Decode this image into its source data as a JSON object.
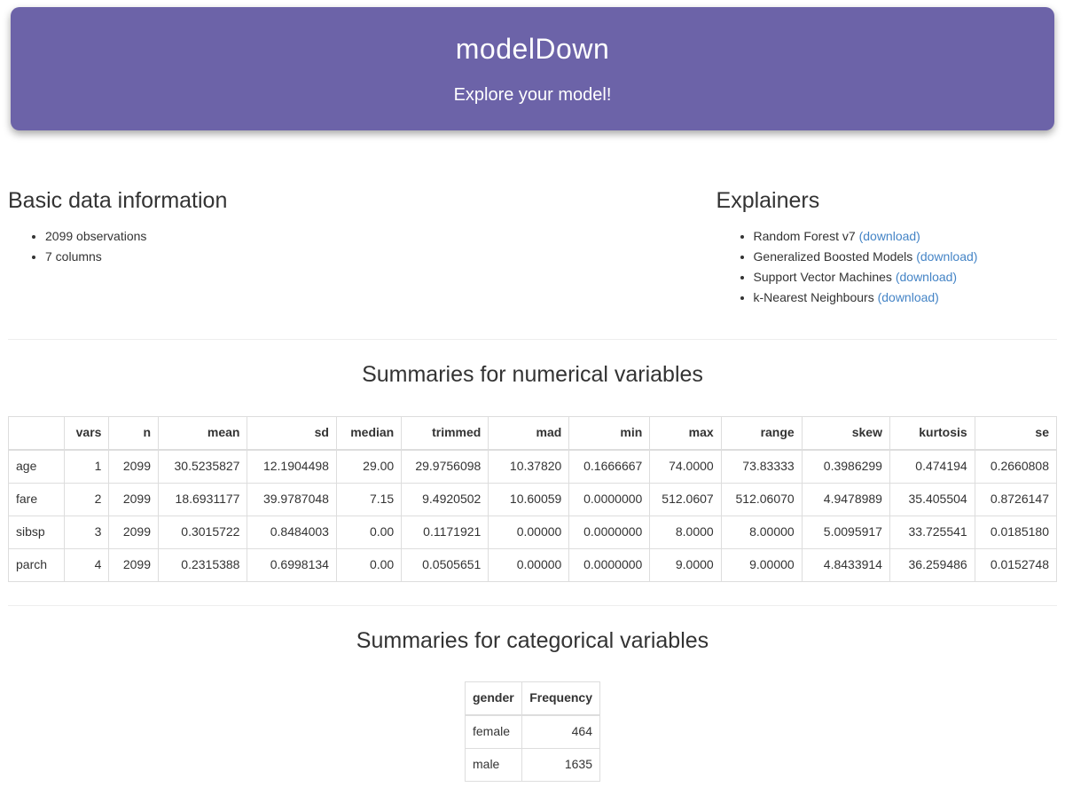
{
  "header": {
    "title": "modelDown",
    "subtitle": "Explore your model!"
  },
  "basic_info": {
    "heading": "Basic data information",
    "items": [
      "2099 observations",
      "7 columns"
    ]
  },
  "explainers": {
    "heading": "Explainers",
    "items": [
      {
        "name": "Random Forest v7",
        "link": "(download)"
      },
      {
        "name": "Generalized Boosted Models",
        "link": "(download)"
      },
      {
        "name": "Support Vector Machines",
        "link": "(download)"
      },
      {
        "name": "k-Nearest Neighbours",
        "link": "(download)"
      }
    ]
  },
  "numerical_summary": {
    "heading": "Summaries for numerical variables",
    "columns": [
      "",
      "vars",
      "n",
      "mean",
      "sd",
      "median",
      "trimmed",
      "mad",
      "min",
      "max",
      "range",
      "skew",
      "kurtosis",
      "se"
    ],
    "rows": [
      [
        "age",
        "1",
        "2099",
        "30.5235827",
        "12.1904498",
        "29.00",
        "29.9756098",
        "10.37820",
        "0.1666667",
        "74.0000",
        "73.83333",
        "0.3986299",
        "0.474194",
        "0.2660808"
      ],
      [
        "fare",
        "2",
        "2099",
        "18.6931177",
        "39.9787048",
        "7.15",
        "9.4920502",
        "10.60059",
        "0.0000000",
        "512.0607",
        "512.06070",
        "4.9478989",
        "35.405504",
        "0.8726147"
      ],
      [
        "sibsp",
        "3",
        "2099",
        "0.3015722",
        "0.8484003",
        "0.00",
        "0.1171921",
        "0.00000",
        "0.0000000",
        "8.0000",
        "8.00000",
        "5.0095917",
        "33.725541",
        "0.0185180"
      ],
      [
        "parch",
        "4",
        "2099",
        "0.2315388",
        "0.6998134",
        "0.00",
        "0.0505651",
        "0.00000",
        "0.0000000",
        "9.0000",
        "9.00000",
        "4.8433914",
        "36.259486",
        "0.0152748"
      ]
    ]
  },
  "categorical_summary": {
    "heading": "Summaries for categorical variables",
    "columns": [
      "gender",
      "Frequency"
    ],
    "rows": [
      [
        "female",
        "464"
      ],
      [
        "male",
        "1635"
      ]
    ]
  },
  "colors": {
    "accent_purple": "#6c63a8",
    "link_blue": "#4484c6",
    "table_border": "#dddddd",
    "divider": "#eeeeee",
    "text": "#333333"
  }
}
